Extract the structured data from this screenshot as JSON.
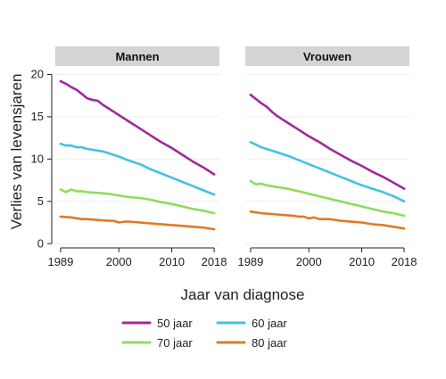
{
  "chart_data": {
    "type": "line",
    "ylabel": "Verlies van levensjaren",
    "xlabel": "Jaar van diagnose",
    "xlim": [
      1988,
      2019
    ],
    "ylim": [
      -0.5,
      21
    ],
    "x_ticks": [
      1989,
      2000,
      2010,
      2018
    ],
    "y_ticks": [
      0,
      5,
      10,
      15,
      20
    ],
    "grid": true,
    "legend_position": "bottom",
    "panels": [
      {
        "title": "Mannen",
        "series": [
          {
            "name": "50 jaar",
            "color": "#a0299b",
            "points": [
              [
                1989,
                19.2
              ],
              [
                1990,
                18.9
              ],
              [
                1991,
                18.5
              ],
              [
                1992,
                18.2
              ],
              [
                1993,
                17.7
              ],
              [
                1994,
                17.2
              ],
              [
                1995,
                17.0
              ],
              [
                1996,
                16.9
              ],
              [
                1997,
                16.4
              ],
              [
                1998,
                16.0
              ],
              [
                1999,
                15.6
              ],
              [
                2000,
                15.2
              ],
              [
                2002,
                14.4
              ],
              [
                2004,
                13.6
              ],
              [
                2006,
                12.8
              ],
              [
                2008,
                12.0
              ],
              [
                2010,
                11.3
              ],
              [
                2012,
                10.5
              ],
              [
                2014,
                9.7
              ],
              [
                2016,
                9.0
              ],
              [
                2018,
                8.2
              ]
            ]
          },
          {
            "name": "60 jaar",
            "color": "#45c1e3",
            "points": [
              [
                1989,
                11.8
              ],
              [
                1990,
                11.6
              ],
              [
                1991,
                11.6
              ],
              [
                1992,
                11.4
              ],
              [
                1993,
                11.4
              ],
              [
                1994,
                11.2
              ],
              [
                1995,
                11.1
              ],
              [
                1996,
                11.0
              ],
              [
                1997,
                10.9
              ],
              [
                1998,
                10.7
              ],
              [
                1999,
                10.5
              ],
              [
                2000,
                10.3
              ],
              [
                2002,
                9.8
              ],
              [
                2004,
                9.4
              ],
              [
                2006,
                8.8
              ],
              [
                2008,
                8.3
              ],
              [
                2010,
                7.8
              ],
              [
                2012,
                7.3
              ],
              [
                2014,
                6.8
              ],
              [
                2016,
                6.3
              ],
              [
                2018,
                5.8
              ]
            ]
          },
          {
            "name": "70 jaar",
            "color": "#8fdc5c",
            "points": [
              [
                1989,
                6.4
              ],
              [
                1990,
                6.1
              ],
              [
                1991,
                6.4
              ],
              [
                1992,
                6.2
              ],
              [
                1993,
                6.2
              ],
              [
                1994,
                6.1
              ],
              [
                1996,
                6.0
              ],
              [
                1998,
                5.9
              ],
              [
                2000,
                5.7
              ],
              [
                2002,
                5.5
              ],
              [
                2004,
                5.4
              ],
              [
                2006,
                5.2
              ],
              [
                2008,
                4.9
              ],
              [
                2010,
                4.7
              ],
              [
                2012,
                4.4
              ],
              [
                2014,
                4.1
              ],
              [
                2016,
                3.9
              ],
              [
                2018,
                3.6
              ]
            ]
          },
          {
            "name": "80 jaar",
            "color": "#e07a25",
            "points": [
              [
                1989,
                3.2
              ],
              [
                1991,
                3.1
              ],
              [
                1993,
                2.9
              ],
              [
                1994,
                2.9
              ],
              [
                1996,
                2.8
              ],
              [
                1998,
                2.7
              ],
              [
                1999,
                2.7
              ],
              [
                2000,
                2.5
              ],
              [
                2001,
                2.6
              ],
              [
                2002,
                2.6
              ],
              [
                2004,
                2.5
              ],
              [
                2006,
                2.4
              ],
              [
                2008,
                2.3
              ],
              [
                2010,
                2.2
              ],
              [
                2012,
                2.1
              ],
              [
                2014,
                2.0
              ],
              [
                2016,
                1.9
              ],
              [
                2018,
                1.7
              ]
            ]
          }
        ]
      },
      {
        "title": "Vrouwen",
        "series": [
          {
            "name": "50 jaar",
            "color": "#a0299b",
            "points": [
              [
                1989,
                17.6
              ],
              [
                1990,
                17.1
              ],
              [
                1991,
                16.6
              ],
              [
                1992,
                16.2
              ],
              [
                1993,
                15.6
              ],
              [
                1994,
                15.1
              ],
              [
                1995,
                14.7
              ],
              [
                1996,
                14.3
              ],
              [
                1998,
                13.5
              ],
              [
                2000,
                12.7
              ],
              [
                2002,
                12.0
              ],
              [
                2004,
                11.2
              ],
              [
                2006,
                10.5
              ],
              [
                2008,
                9.8
              ],
              [
                2010,
                9.2
              ],
              [
                2012,
                8.5
              ],
              [
                2014,
                7.9
              ],
              [
                2016,
                7.2
              ],
              [
                2018,
                6.5
              ]
            ]
          },
          {
            "name": "60 jaar",
            "color": "#45c1e3",
            "points": [
              [
                1989,
                12.0
              ],
              [
                1990,
                11.7
              ],
              [
                1991,
                11.4
              ],
              [
                1992,
                11.2
              ],
              [
                1994,
                10.8
              ],
              [
                1996,
                10.4
              ],
              [
                1998,
                9.9
              ],
              [
                2000,
                9.4
              ],
              [
                2002,
                8.9
              ],
              [
                2004,
                8.4
              ],
              [
                2006,
                7.9
              ],
              [
                2008,
                7.4
              ],
              [
                2010,
                6.9
              ],
              [
                2012,
                6.5
              ],
              [
                2014,
                6.1
              ],
              [
                2016,
                5.6
              ],
              [
                2018,
                5.0
              ]
            ]
          },
          {
            "name": "70 jaar",
            "color": "#8fdc5c",
            "points": [
              [
                1989,
                7.4
              ],
              [
                1990,
                7.0
              ],
              [
                1991,
                7.1
              ],
              [
                1992,
                6.9
              ],
              [
                1994,
                6.7
              ],
              [
                1996,
                6.5
              ],
              [
                1998,
                6.2
              ],
              [
                2000,
                5.9
              ],
              [
                2002,
                5.6
              ],
              [
                2004,
                5.3
              ],
              [
                2006,
                5.0
              ],
              [
                2008,
                4.7
              ],
              [
                2010,
                4.4
              ],
              [
                2012,
                4.1
              ],
              [
                2014,
                3.8
              ],
              [
                2016,
                3.6
              ],
              [
                2018,
                3.3
              ]
            ]
          },
          {
            "name": "80 jaar",
            "color": "#e07a25",
            "points": [
              [
                1989,
                3.8
              ],
              [
                1991,
                3.6
              ],
              [
                1993,
                3.5
              ],
              [
                1995,
                3.4
              ],
              [
                1997,
                3.3
              ],
              [
                1998,
                3.2
              ],
              [
                1999,
                3.2
              ],
              [
                2000,
                3.0
              ],
              [
                2001,
                3.1
              ],
              [
                2002,
                2.9
              ],
              [
                2004,
                2.9
              ],
              [
                2006,
                2.7
              ],
              [
                2008,
                2.6
              ],
              [
                2010,
                2.5
              ],
              [
                2012,
                2.3
              ],
              [
                2014,
                2.2
              ],
              [
                2016,
                2.0
              ],
              [
                2018,
                1.8
              ]
            ]
          }
        ]
      }
    ]
  }
}
